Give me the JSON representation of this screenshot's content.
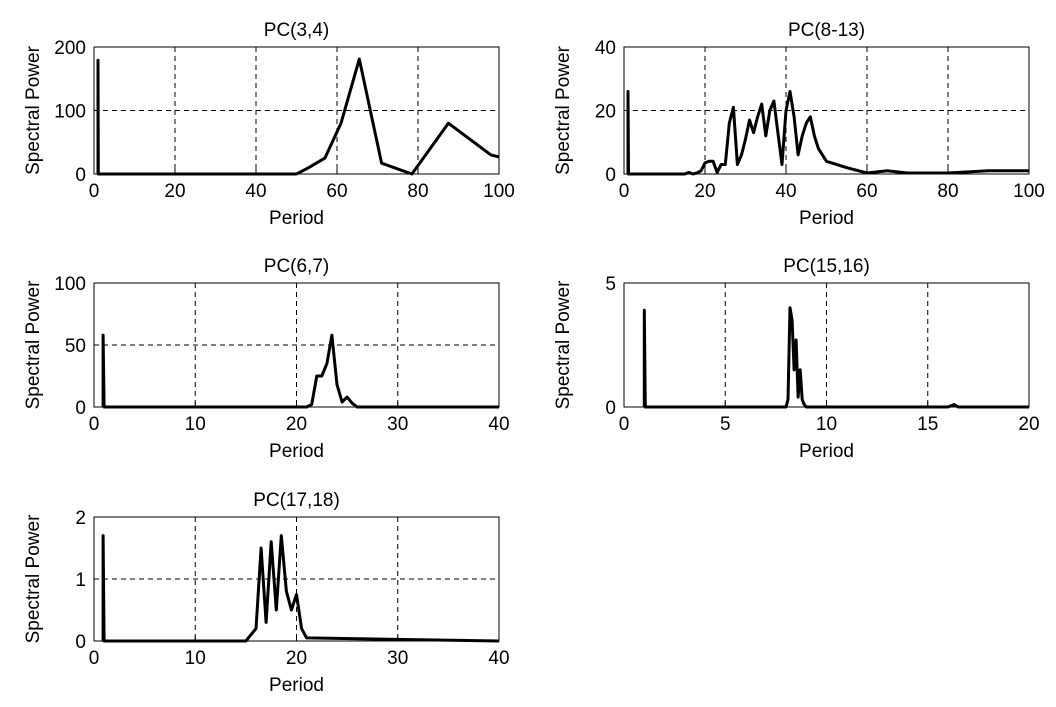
{
  "chart_data": [
    {
      "type": "line",
      "title": "PC(3,4)",
      "xlabel": "Period",
      "ylabel": "Spectral Power",
      "xlim": [
        0,
        100
      ],
      "ylim": [
        0,
        200
      ],
      "xticks": [
        "0",
        "20",
        "40",
        "60",
        "80",
        "100"
      ],
      "yticks": [
        "0",
        "100",
        "200"
      ],
      "grid": true,
      "series": [
        {
          "x": [
            1,
            1,
            1.05,
            50,
            53,
            57,
            61,
            65.5,
            71,
            78.5,
            87.5,
            98,
            100
          ],
          "y": [
            0,
            179,
            0,
            0,
            10,
            25,
            80,
            181,
            17,
            0,
            80,
            30,
            27
          ]
        }
      ]
    },
    {
      "type": "line",
      "title": "PC(8-13)",
      "xlabel": "Period",
      "ylabel": "Spectral Power",
      "xlim": [
        0,
        100
      ],
      "ylim": [
        0,
        40
      ],
      "xticks": [
        "0",
        "20",
        "40",
        "60",
        "80",
        "100"
      ],
      "yticks": [
        "0",
        "20",
        "40"
      ],
      "grid": true,
      "series": [
        {
          "x": [
            1,
            1,
            1.1,
            15,
            16,
            17,
            18,
            19,
            20,
            21,
            22,
            23,
            24,
            25,
            26,
            27,
            28,
            29,
            30,
            31,
            32,
            33,
            34,
            35,
            36,
            37,
            38,
            39,
            40,
            41,
            42,
            43,
            44,
            45,
            46,
            47,
            48,
            50,
            55,
            60,
            65,
            70,
            80,
            90,
            100
          ],
          "y": [
            0,
            26,
            0,
            0,
            0.5,
            0,
            0.3,
            1,
            3.5,
            4,
            4,
            0.5,
            3,
            3,
            16,
            21,
            3,
            6,
            11,
            17,
            13,
            18,
            22,
            12,
            20,
            23,
            13,
            3,
            20,
            26,
            18,
            6,
            12,
            16,
            18,
            12,
            8,
            4,
            2,
            0.3,
            1,
            0.3,
            0.3,
            1,
            1
          ]
        }
      ]
    },
    {
      "type": "line",
      "title": "PC(6,7)",
      "xlabel": "Period",
      "ylabel": "Spectral Power",
      "xlim": [
        0,
        40
      ],
      "ylim": [
        0,
        100
      ],
      "xticks": [
        "0",
        "10",
        "20",
        "30",
        "40"
      ],
      "yticks": [
        "0",
        "50",
        "100"
      ],
      "grid": true,
      "series": [
        {
          "x": [
            0.9,
            0.9,
            1,
            21,
            21.5,
            22,
            22.5,
            23,
            23.5,
            24,
            24.5,
            25,
            25.5,
            26,
            40
          ],
          "y": [
            0,
            58,
            0,
            0,
            2,
            25,
            25,
            35,
            58,
            18,
            4,
            8,
            3,
            0,
            0
          ]
        }
      ]
    },
    {
      "type": "line",
      "title": "PC(15,16)",
      "xlabel": "Period",
      "ylabel": "Spectral Power",
      "xlim": [
        0,
        20
      ],
      "ylim": [
        0,
        5
      ],
      "xticks": [
        "0",
        "5",
        "10",
        "15",
        "20"
      ],
      "yticks": [
        "0",
        "5"
      ],
      "grid": true,
      "series": [
        {
          "x": [
            1,
            1,
            1.05,
            8,
            8.1,
            8.2,
            8.3,
            8.4,
            8.5,
            8.6,
            8.7,
            8.8,
            8.9,
            9,
            16,
            16.3,
            16.5,
            20
          ],
          "y": [
            0,
            3.9,
            0,
            0,
            0.3,
            4,
            3.5,
            1.5,
            2.7,
            0.4,
            1.5,
            0.3,
            0.1,
            0,
            0,
            0.1,
            0,
            0
          ]
        }
      ]
    },
    {
      "type": "line",
      "title": "PC(17,18)",
      "xlabel": "Period",
      "ylabel": "Spectral Power",
      "xlim": [
        0,
        40
      ],
      "ylim": [
        0,
        2
      ],
      "xticks": [
        "0",
        "10",
        "20",
        "30",
        "40"
      ],
      "yticks": [
        "0",
        "1",
        "2"
      ],
      "grid": true,
      "series": [
        {
          "x": [
            0.9,
            0.9,
            1,
            15,
            15.5,
            16,
            16.5,
            17,
            17.5,
            18,
            18.5,
            19,
            19.5,
            20,
            20.5,
            21,
            40
          ],
          "y": [
            0,
            1.7,
            0,
            0,
            0.1,
            0.2,
            1.5,
            0.3,
            1.6,
            0.5,
            1.7,
            0.8,
            0.5,
            0.75,
            0.2,
            0.05,
            0
          ]
        }
      ]
    }
  ]
}
